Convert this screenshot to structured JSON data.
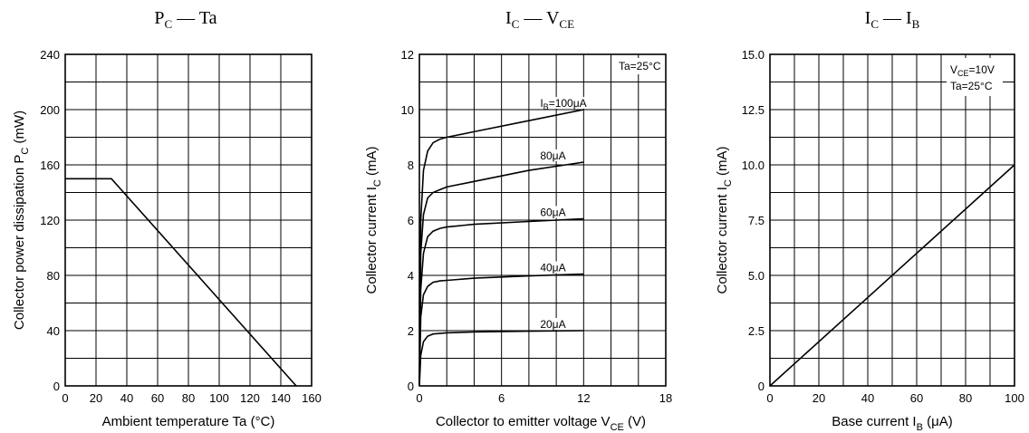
{
  "chart_data": [
    {
      "id": "pc_ta",
      "type": "line",
      "title": {
        "main": "P",
        "sub": "C",
        "rest": " — Ta"
      },
      "xlabel": "Ambient temperature   Ta   (°C)",
      "ylabel": {
        "pre": "Collector power dissipation   P",
        "sub": "C",
        "post": "   (mW)"
      },
      "xlim": [
        0,
        160
      ],
      "ylim": [
        0,
        240
      ],
      "xticks": [
        0,
        20,
        40,
        60,
        80,
        100,
        120,
        140,
        160
      ],
      "yticks": [
        0,
        40,
        80,
        120,
        160,
        200,
        240
      ],
      "xtick_labels": [
        "0",
        "20",
        "40",
        "60",
        "80",
        "100",
        "120",
        "140",
        "160"
      ],
      "ytick_labels": [
        "0",
        "40",
        "80",
        "120",
        "160",
        "200",
        "240"
      ],
      "grid_x_step": 20,
      "grid_y_step": 20,
      "grid": true,
      "series": [
        {
          "x": [
            0,
            30,
            150
          ],
          "y": [
            150,
            150,
            0
          ]
        }
      ]
    },
    {
      "id": "ic_vce",
      "type": "line",
      "title": {
        "main": "I",
        "sub": "C",
        "rest": " — V",
        "sub2": "CE"
      },
      "xlabel": {
        "pre": "Collector to emitter voltage   V",
        "sub": "CE",
        "post": "   (V)"
      },
      "ylabel": {
        "pre": "Collector current   I",
        "sub": "C",
        "post": "   (mA)"
      },
      "xlim": [
        0,
        18
      ],
      "ylim": [
        0,
        12
      ],
      "xticks": [
        0,
        6,
        12,
        18
      ],
      "yticks": [
        0,
        2,
        4,
        6,
        8,
        10,
        12
      ],
      "xtick_labels": [
        "0",
        "6",
        "12",
        "18"
      ],
      "ytick_labels": [
        "0",
        "2",
        "4",
        "6",
        "8",
        "10",
        "12"
      ],
      "grid_x_step": 2,
      "grid_y_step": 1,
      "grid": true,
      "condition": "Ta=25°C",
      "series": [
        {
          "name": "I_B=100μA",
          "label_pre": "I",
          "label_sub": "B",
          "label_post": "=100μA",
          "x": [
            0,
            0.1,
            0.3,
            0.6,
            1.0,
            1.5,
            2.0,
            4.0,
            8.0,
            12.0
          ],
          "y": [
            0,
            6.0,
            7.8,
            8.5,
            8.8,
            8.93,
            9.0,
            9.2,
            9.6,
            10.0
          ]
        },
        {
          "name": "80μA",
          "label_pre": "80μA",
          "x": [
            0,
            0.1,
            0.3,
            0.6,
            1.0,
            1.5,
            2.0,
            4.0,
            8.0,
            12.0
          ],
          "y": [
            0,
            4.8,
            6.2,
            6.8,
            7.0,
            7.1,
            7.2,
            7.4,
            7.8,
            8.1
          ]
        },
        {
          "name": "60μA",
          "label_pre": "60μA",
          "x": [
            0,
            0.1,
            0.3,
            0.6,
            1.0,
            1.5,
            2.0,
            4.0,
            8.0,
            12.0
          ],
          "y": [
            0,
            3.5,
            4.8,
            5.4,
            5.6,
            5.7,
            5.75,
            5.85,
            5.95,
            6.05
          ]
        },
        {
          "name": "40μA",
          "label_pre": "40μA",
          "x": [
            0,
            0.1,
            0.3,
            0.6,
            1.0,
            1.5,
            2.0,
            4.0,
            8.0,
            12.0
          ],
          "y": [
            0,
            2.5,
            3.3,
            3.6,
            3.75,
            3.8,
            3.82,
            3.9,
            3.98,
            4.05
          ]
        },
        {
          "name": "20μA",
          "label_pre": "20μA",
          "x": [
            0,
            0.1,
            0.3,
            0.6,
            1.0,
            1.5,
            2.0,
            4.0,
            8.0,
            12.0
          ],
          "y": [
            0,
            1.1,
            1.6,
            1.8,
            1.88,
            1.9,
            1.92,
            1.95,
            1.98,
            2.0
          ]
        }
      ]
    },
    {
      "id": "ic_ib",
      "type": "line",
      "title": {
        "main": "I",
        "sub": "C",
        "rest": " — I",
        "sub2": "B"
      },
      "xlabel": {
        "pre": "Base current   I",
        "sub": "B",
        "post": "   (μA)"
      },
      "ylabel": {
        "pre": "Collector current   I",
        "sub": "C",
        "post": "   (mA)"
      },
      "xlim": [
        0,
        100
      ],
      "ylim": [
        0,
        15
      ],
      "xticks": [
        0,
        20,
        40,
        60,
        80,
        100
      ],
      "yticks": [
        0,
        2.5,
        5,
        7.5,
        10,
        12.5,
        15
      ],
      "xtick_labels": [
        "0",
        "20",
        "40",
        "60",
        "80",
        "100"
      ],
      "ytick_labels": [
        "0",
        "2.5",
        "5.0",
        "7.5",
        "10.0",
        "12.5",
        "15.0"
      ],
      "grid_x_step": 10,
      "grid_y_step": 1.25,
      "grid": true,
      "condition": {
        "line1_pre": "V",
        "line1_sub": "CE",
        "line1_post": "=10V",
        "line2": "Ta=25°C"
      },
      "series": [
        {
          "x": [
            0,
            100
          ],
          "y": [
            0,
            10
          ]
        }
      ]
    }
  ]
}
